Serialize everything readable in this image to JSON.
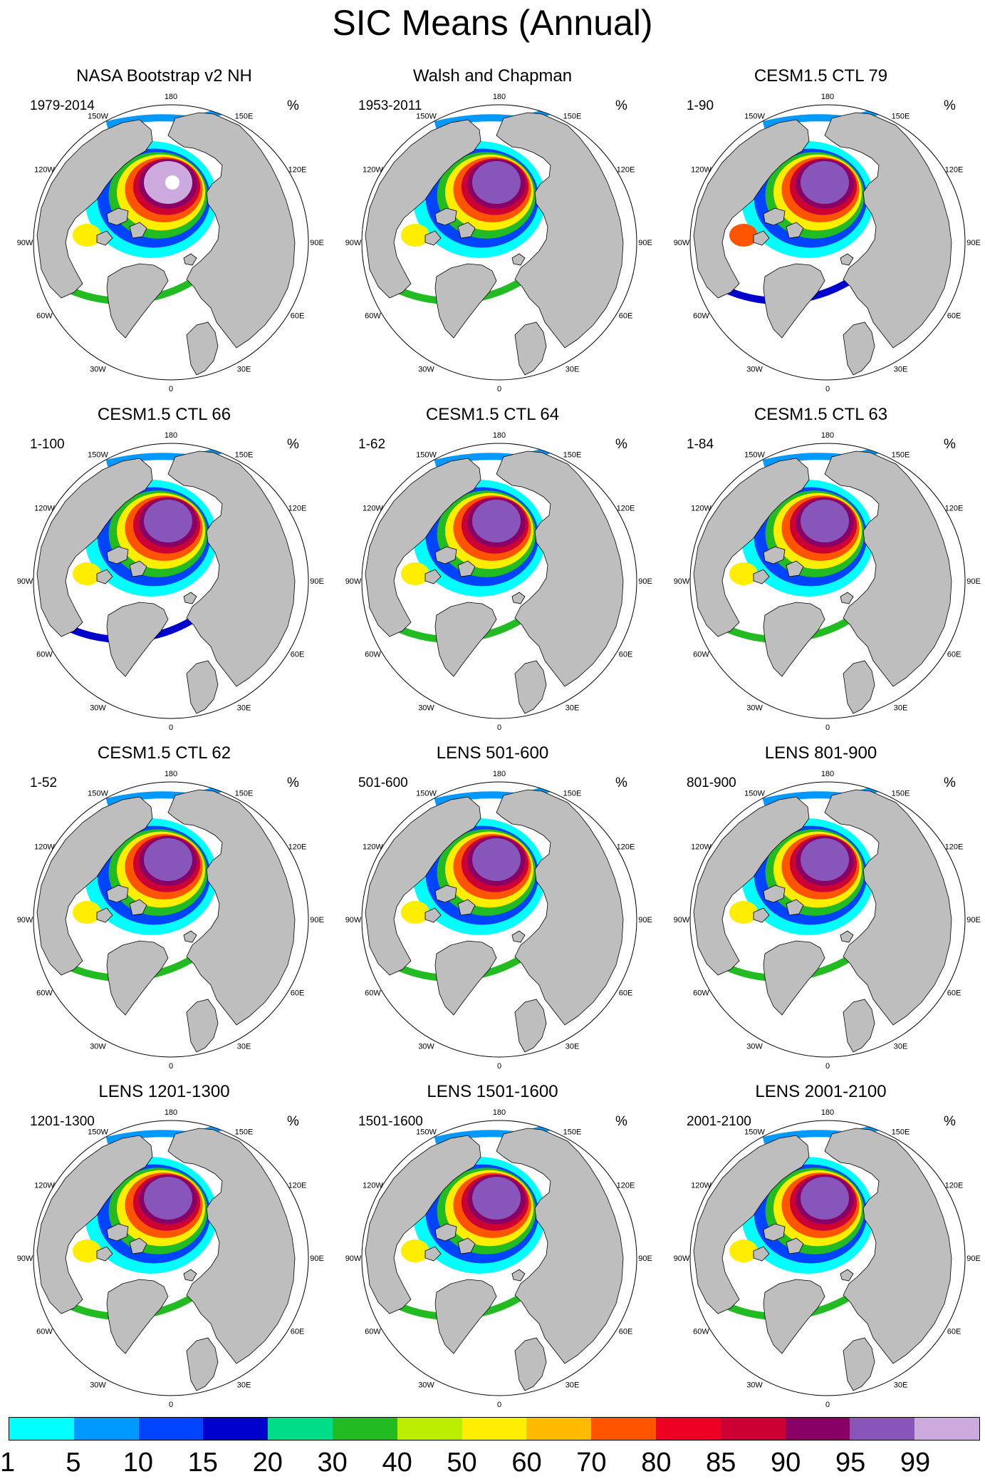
{
  "title": "SIC Means (Annual)",
  "unit": "%",
  "longitude_labels": [
    "180",
    "150W",
    "150E",
    "120W",
    "120E",
    "90W",
    "90E",
    "60W",
    "60E",
    "30W",
    "30E",
    "0"
  ],
  "colors": {
    "land": "#bebebe",
    "open_ocean": "#ffffff",
    "outline": "#000000"
  },
  "colorbar": {
    "colors": [
      "#00ffff",
      "#0099ff",
      "#0044ff",
      "#0000cc",
      "#00dd88",
      "#22bb22",
      "#bbee00",
      "#ffee00",
      "#ffbb00",
      "#ff5500",
      "#ee0022",
      "#cc0033",
      "#880066",
      "#8855bb",
      "#ccaadd"
    ],
    "labels": [
      "1",
      "5",
      "10",
      "15",
      "20",
      "30",
      "40",
      "50",
      "60",
      "70",
      "80",
      "85",
      "90",
      "95",
      "99"
    ]
  },
  "panels": [
    {
      "title": "NASA Bootstrap v2 NH",
      "period": "1979-2014"
    },
    {
      "title": "Walsh and Chapman",
      "period": "1953-2011"
    },
    {
      "title": "CESM1.5 CTL 79",
      "period": "1-90"
    },
    {
      "title": "CESM1.5 CTL 66",
      "period": "1-100"
    },
    {
      "title": "CESM1.5 CTL 64",
      "period": "1-62"
    },
    {
      "title": "CESM1.5 CTL 63",
      "period": "1-84"
    },
    {
      "title": "CESM1.5 CTL 62",
      "period": "1-52"
    },
    {
      "title": "LENS 501-600",
      "period": "501-600"
    },
    {
      "title": "LENS 801-900",
      "period": "801-900"
    },
    {
      "title": "LENS 1201-1300",
      "period": "1201-1300"
    },
    {
      "title": "LENS 1501-1600",
      "period": "1501-1600"
    },
    {
      "title": "LENS 2001-2100",
      "period": "2001-2100"
    }
  ]
}
